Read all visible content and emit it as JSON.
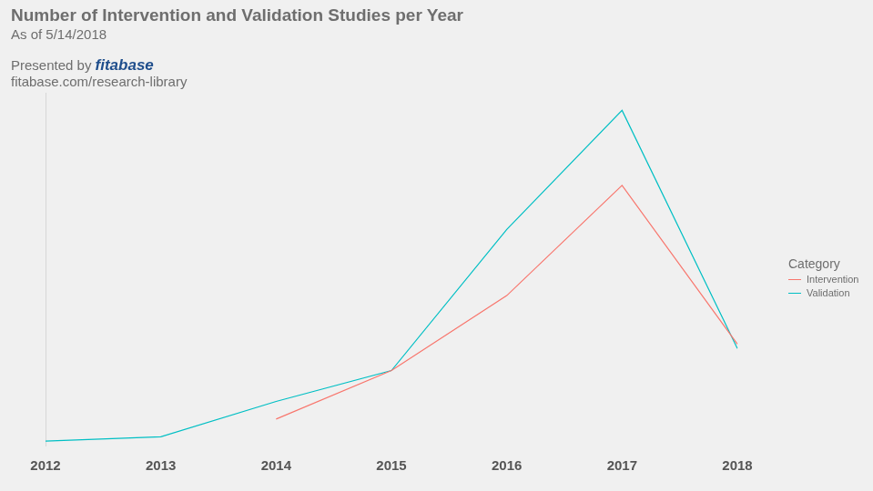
{
  "chart_data": {
    "type": "line",
    "title": "Number of Intervention and Validation Studies per Year",
    "subtitle": "As of 5/14/2018",
    "annotations": [
      "Presented by",
      "fitabase",
      "fitabase.com/research-library"
    ],
    "legend_title": "Category",
    "categories": [
      "2012",
      "2013",
      "2014",
      "2015",
      "2016",
      "2017",
      "2018"
    ],
    "series": [
      {
        "name": "Intervention",
        "color": "#F8766D",
        "values": [
          null,
          null,
          6,
          17,
          34,
          59,
          23
        ]
      },
      {
        "name": "Validation",
        "color": "#00BFC4",
        "values": [
          1,
          2,
          10,
          17,
          49,
          76,
          22
        ]
      }
    ],
    "ylim": [
      0,
      80
    ],
    "grid": false,
    "legend": "right",
    "tick_labels": "x"
  }
}
